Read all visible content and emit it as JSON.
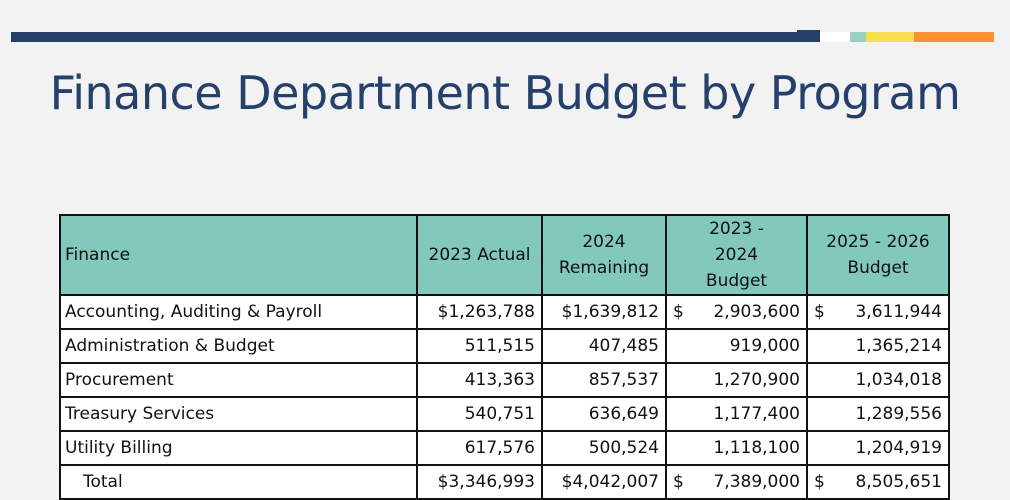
{
  "title": "Finance Department Budget by Program",
  "colors": {
    "navy": "#253f6a",
    "teal": "#9bcfc5",
    "yellow": "#f6df4d",
    "orange": "#fd9235",
    "header_bg": "#82c8bb"
  },
  "table": {
    "headers": [
      "Finance",
      "2023 Actual",
      "2024 Remaining",
      "2023 - 2024 Budget",
      "2025 - 2026 Budget"
    ],
    "rows": [
      {
        "name": "Accounting, Auditing & Payroll",
        "actual_2023": "$1,263,788",
        "remaining_2024": "$1,639,812",
        "budget_2023_2024": "2,903,600",
        "budget_2025_2026": "3,611,944",
        "currency": "$"
      },
      {
        "name": "Administration & Budget",
        "actual_2023": "511,515",
        "remaining_2024": "407,485",
        "budget_2023_2024": "919,000",
        "budget_2025_2026": "1,365,214"
      },
      {
        "name": "Procurement",
        "actual_2023": "413,363",
        "remaining_2024": "857,537",
        "budget_2023_2024": "1,270,900",
        "budget_2025_2026": "1,034,018"
      },
      {
        "name": "Treasury Services",
        "actual_2023": "540,751",
        "remaining_2024": "636,649",
        "budget_2023_2024": "1,177,400",
        "budget_2025_2026": "1,289,556"
      },
      {
        "name": "Utility Billing",
        "actual_2023": "617,576",
        "remaining_2024": "500,524",
        "budget_2023_2024": "1,118,100",
        "budget_2025_2026": "1,204,919"
      }
    ],
    "total": {
      "name": "Total",
      "actual_2023": "$3,346,993",
      "remaining_2024": "$4,042,007",
      "budget_2023_2024": "7,389,000",
      "budget_2025_2026": "8,505,651",
      "currency": "$"
    }
  }
}
